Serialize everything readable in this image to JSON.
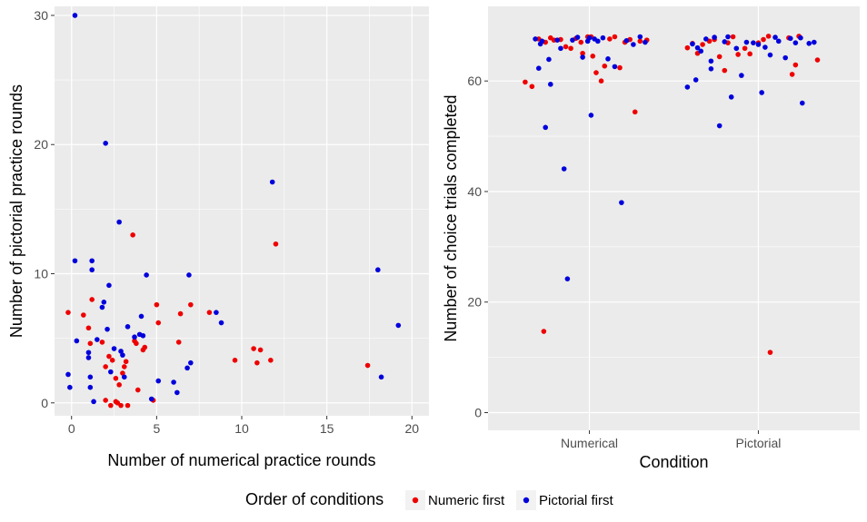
{
  "colors": {
    "numeric_first": "#ee0000",
    "pictorial_first": "#0000dd",
    "panel_bg": "#ebebeb",
    "grid": "#ffffff"
  },
  "legend": {
    "title": "Order of conditions",
    "position": "bottom",
    "entries": [
      {
        "label": "Numeric first",
        "color": "#ee0000"
      },
      {
        "label": "Pictorial first",
        "color": "#0000dd"
      }
    ]
  },
  "chart_data": [
    {
      "type": "scatter",
      "xlabel": "Number of numerical practice rounds",
      "ylabel": "Number of pictorial practice rounds",
      "xlim": [
        -1,
        21
      ],
      "ylim": [
        -1,
        30.7
      ],
      "xticks": [
        0,
        5,
        10,
        15,
        20
      ],
      "yticks": [
        0,
        10,
        20,
        30
      ],
      "grid": true,
      "series": [
        {
          "name": "Numeric first",
          "color": "#ee0000",
          "points": [
            [
              -0.2,
              7.0
            ],
            [
              0.7,
              6.8
            ],
            [
              1.0,
              5.8
            ],
            [
              1.1,
              4.6
            ],
            [
              1.2,
              8.0
            ],
            [
              1.8,
              4.7
            ],
            [
              2.0,
              2.8
            ],
            [
              2.2,
              3.6
            ],
            [
              2.4,
              3.3
            ],
            [
              2.6,
              0.1
            ],
            [
              2.7,
              0.0
            ],
            [
              2.8,
              1.4
            ],
            [
              2.9,
              -0.2
            ],
            [
              3.0,
              2.3
            ],
            [
              3.1,
              2.8
            ],
            [
              3.2,
              3.2
            ],
            [
              3.3,
              -0.2
            ],
            [
              3.6,
              13.0
            ],
            [
              3.7,
              4.8
            ],
            [
              3.8,
              4.6
            ],
            [
              3.9,
              1.0
            ],
            [
              4.2,
              4.1
            ],
            [
              4.3,
              4.3
            ],
            [
              4.8,
              0.2
            ],
            [
              5.0,
              7.6
            ],
            [
              5.1,
              6.2
            ],
            [
              6.3,
              4.7
            ],
            [
              6.4,
              6.9
            ],
            [
              7.0,
              7.6
            ],
            [
              8.1,
              7.0
            ],
            [
              9.6,
              3.3
            ],
            [
              10.7,
              4.2
            ],
            [
              10.9,
              3.1
            ],
            [
              11.1,
              4.1
            ],
            [
              11.7,
              3.3
            ],
            [
              12.0,
              12.3
            ],
            [
              17.4,
              2.9
            ],
            [
              2.0,
              0.2
            ],
            [
              2.6,
              1.9
            ],
            [
              2.3,
              -0.2
            ]
          ]
        },
        {
          "name": "Pictorial first",
          "color": "#0000dd",
          "points": [
            [
              -0.2,
              2.2
            ],
            [
              -0.1,
              1.2
            ],
            [
              0.2,
              11.0
            ],
            [
              0.2,
              30.0
            ],
            [
              0.3,
              4.8
            ],
            [
              1.0,
              3.9
            ],
            [
              1.0,
              3.5
            ],
            [
              1.1,
              2.0
            ],
            [
              1.1,
              1.2
            ],
            [
              1.2,
              11.0
            ],
            [
              1.2,
              10.3
            ],
            [
              1.3,
              0.1
            ],
            [
              1.5,
              4.9
            ],
            [
              1.8,
              7.4
            ],
            [
              1.9,
              7.8
            ],
            [
              2.0,
              20.1
            ],
            [
              2.1,
              5.7
            ],
            [
              2.2,
              9.1
            ],
            [
              2.3,
              2.4
            ],
            [
              2.5,
              4.2
            ],
            [
              2.8,
              14.0
            ],
            [
              2.9,
              4.0
            ],
            [
              3.0,
              3.7
            ],
            [
              3.1,
              2.0
            ],
            [
              3.3,
              5.9
            ],
            [
              3.7,
              5.1
            ],
            [
              4.0,
              5.3
            ],
            [
              4.1,
              6.7
            ],
            [
              4.2,
              5.2
            ],
            [
              4.4,
              9.9
            ],
            [
              4.7,
              0.3
            ],
            [
              5.1,
              1.7
            ],
            [
              6.0,
              1.6
            ],
            [
              6.2,
              0.8
            ],
            [
              6.8,
              2.7
            ],
            [
              6.9,
              9.9
            ],
            [
              7.0,
              3.1
            ],
            [
              8.5,
              7.0
            ],
            [
              8.8,
              6.2
            ],
            [
              11.8,
              17.1
            ],
            [
              18.0,
              10.3
            ],
            [
              18.2,
              2.0
            ],
            [
              19.2,
              6.0
            ]
          ]
        }
      ]
    },
    {
      "type": "scatter",
      "xlabel": "Condition",
      "ylabel": "Number of choice trials completed",
      "categories": [
        "Numerical",
        "Pictorial"
      ],
      "ylim": [
        -3.2,
        73.5
      ],
      "yticks": [
        0,
        20,
        40,
        60
      ],
      "grid": true,
      "series": [
        {
          "name": "Numeric first",
          "color": "#ee0000",
          "points": [
            [
              0.62,
              59.8
            ],
            [
              0.66,
              59.0
            ],
            [
              0.7,
              67.6
            ],
            [
              0.73,
              14.7
            ],
            [
              0.74,
              67.0
            ],
            [
              0.77,
              67.8
            ],
            [
              0.79,
              67.4
            ],
            [
              0.83,
              67.5
            ],
            [
              0.86,
              66.2
            ],
            [
              0.89,
              65.9
            ],
            [
              0.92,
              67.7
            ],
            [
              0.96,
              65.0
            ],
            [
              0.99,
              68.0
            ],
            [
              1.02,
              64.5
            ],
            [
              1.04,
              61.5
            ],
            [
              1.07,
              60.0
            ],
            [
              1.09,
              62.7
            ],
            [
              1.12,
              67.6
            ],
            [
              1.15,
              68.0
            ],
            [
              1.18,
              62.4
            ],
            [
              1.21,
              67.0
            ],
            [
              1.24,
              67.5
            ],
            [
              1.27,
              54.4
            ],
            [
              1.3,
              67.2
            ],
            [
              1.34,
              67.4
            ],
            [
              1.01,
              68.0
            ],
            [
              0.95,
              67.0
            ],
            [
              1.58,
              66.0
            ],
            [
              1.61,
              66.8
            ],
            [
              1.64,
              65.0
            ],
            [
              1.67,
              66.6
            ],
            [
              1.71,
              67.2
            ],
            [
              1.74,
              67.5
            ],
            [
              1.77,
              64.4
            ],
            [
              1.8,
              61.9
            ],
            [
              1.82,
              66.9
            ],
            [
              1.85,
              68.0
            ],
            [
              1.88,
              64.8
            ],
            [
              1.92,
              65.9
            ],
            [
              2.0,
              66.9
            ],
            [
              2.03,
              67.5
            ],
            [
              2.06,
              68.1
            ],
            [
              2.07,
              10.9
            ],
            [
              2.18,
              67.8
            ],
            [
              2.2,
              61.2
            ],
            [
              2.22,
              62.9
            ],
            [
              2.24,
              68.1
            ],
            [
              2.35,
              63.8
            ],
            [
              1.95,
              64.9
            ]
          ]
        },
        {
          "name": "Pictorial first",
          "color": "#0000dd",
          "points": [
            [
              0.68,
              67.6
            ],
            [
              0.7,
              62.3
            ],
            [
              0.72,
              67.2
            ],
            [
              0.74,
              51.6
            ],
            [
              0.76,
              63.9
            ],
            [
              0.77,
              59.4
            ],
            [
              0.81,
              67.4
            ],
            [
              0.83,
              65.9
            ],
            [
              0.85,
              44.1
            ],
            [
              0.87,
              24.2
            ],
            [
              0.9,
              67.4
            ],
            [
              0.93,
              67.9
            ],
            [
              0.96,
              64.3
            ],
            [
              0.99,
              67.2
            ],
            [
              1.01,
              53.8
            ],
            [
              1.03,
              67.6
            ],
            [
              1.05,
              67.2
            ],
            [
              1.08,
              67.8
            ],
            [
              1.11,
              64.0
            ],
            [
              1.15,
              62.6
            ],
            [
              1.19,
              38.0
            ],
            [
              1.22,
              67.3
            ],
            [
              1.26,
              66.6
            ],
            [
              1.3,
              68.0
            ],
            [
              1.33,
              67.0
            ],
            [
              0.71,
              66.7
            ],
            [
              1.0,
              67.8
            ],
            [
              1.58,
              58.9
            ],
            [
              1.61,
              66.7
            ],
            [
              1.63,
              60.2
            ],
            [
              1.66,
              65.4
            ],
            [
              1.69,
              67.6
            ],
            [
              1.72,
              63.6
            ],
            [
              1.74,
              67.9
            ],
            [
              1.77,
              51.9
            ],
            [
              1.8,
              67.1
            ],
            [
              1.82,
              68.0
            ],
            [
              1.84,
              57.1
            ],
            [
              1.87,
              65.9
            ],
            [
              1.9,
              61.0
            ],
            [
              1.93,
              67.0
            ],
            [
              1.97,
              66.9
            ],
            [
              2.0,
              66.6
            ],
            [
              2.02,
              57.9
            ],
            [
              2.04,
              66.1
            ],
            [
              2.07,
              64.7
            ],
            [
              2.1,
              67.9
            ],
            [
              2.12,
              67.2
            ],
            [
              2.16,
              64.2
            ],
            [
              2.19,
              67.7
            ],
            [
              2.22,
              66.9
            ],
            [
              2.26,
              56.0
            ],
            [
              2.3,
              66.8
            ],
            [
              2.33,
              67.0
            ],
            [
              1.64,
              66.0
            ],
            [
              2.25,
              67.8
            ],
            [
              1.72,
              62.2
            ]
          ]
        }
      ]
    }
  ]
}
